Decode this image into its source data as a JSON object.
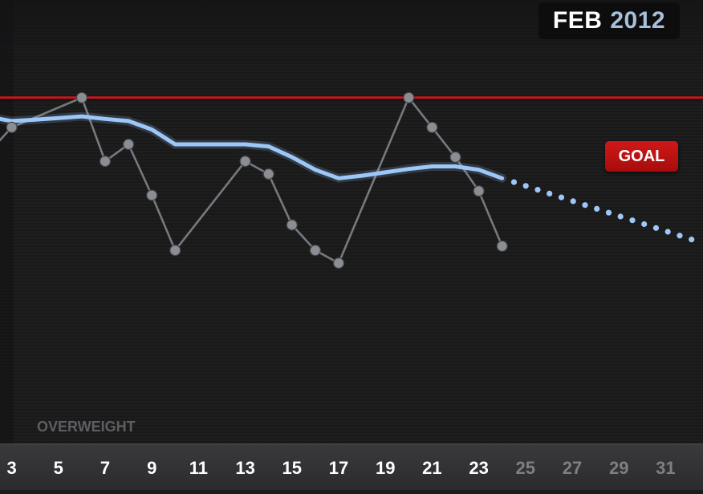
{
  "header": {
    "month": "FEB",
    "year": "2012"
  },
  "goal": {
    "label": "GOAL",
    "color": "#c8161b"
  },
  "zone": {
    "label": "OVERWEIGHT"
  },
  "colors": {
    "background": "#1b1b1c",
    "weight_line": "#76797e",
    "weight_dot": "#8a8d92",
    "trend_line": "#9cc7f7",
    "tick_active": "#ffffff",
    "tick_future": "#7e7f82"
  },
  "chart_data": {
    "type": "line",
    "xlabel": "",
    "ylabel": "",
    "x_ticks": [
      "3",
      "5",
      "7",
      "9",
      "11",
      "13",
      "15",
      "17",
      "19",
      "21",
      "23",
      "25",
      "27",
      "29",
      "31"
    ],
    "future_ticks": [
      "25",
      "27",
      "29",
      "31"
    ],
    "xlim": [
      2.5,
      32.6
    ],
    "ylim": [
      0,
      100
    ],
    "goal": 80,
    "series": [
      {
        "style": "weight-points",
        "x": [
          2,
          3,
          6,
          7,
          8,
          9,
          10,
          13,
          14,
          15,
          16,
          17,
          20,
          21,
          22,
          23,
          24
        ],
        "y": [
          67,
          73,
          80,
          65,
          69,
          57,
          44,
          65,
          62,
          50,
          44,
          41,
          80,
          73,
          66,
          58,
          45
        ]
      },
      {
        "style": "trend",
        "x": [
          2,
          2.5,
          3,
          4,
          5,
          6,
          7,
          8,
          9,
          10,
          11,
          12,
          13,
          14,
          15,
          16,
          17,
          18,
          19,
          20,
          21,
          22,
          23,
          24
        ],
        "y": [
          76,
          75,
          74.5,
          74.8,
          75.2,
          75.6,
          75,
          74.5,
          72.5,
          69,
          69,
          69,
          69,
          68.5,
          66,
          63,
          61,
          61.6,
          62.4,
          63.2,
          63.8,
          63.8,
          63,
          61
        ]
      },
      {
        "style": "projection",
        "x": [
          24,
          33
        ],
        "y": [
          61,
          45
        ]
      }
    ]
  }
}
